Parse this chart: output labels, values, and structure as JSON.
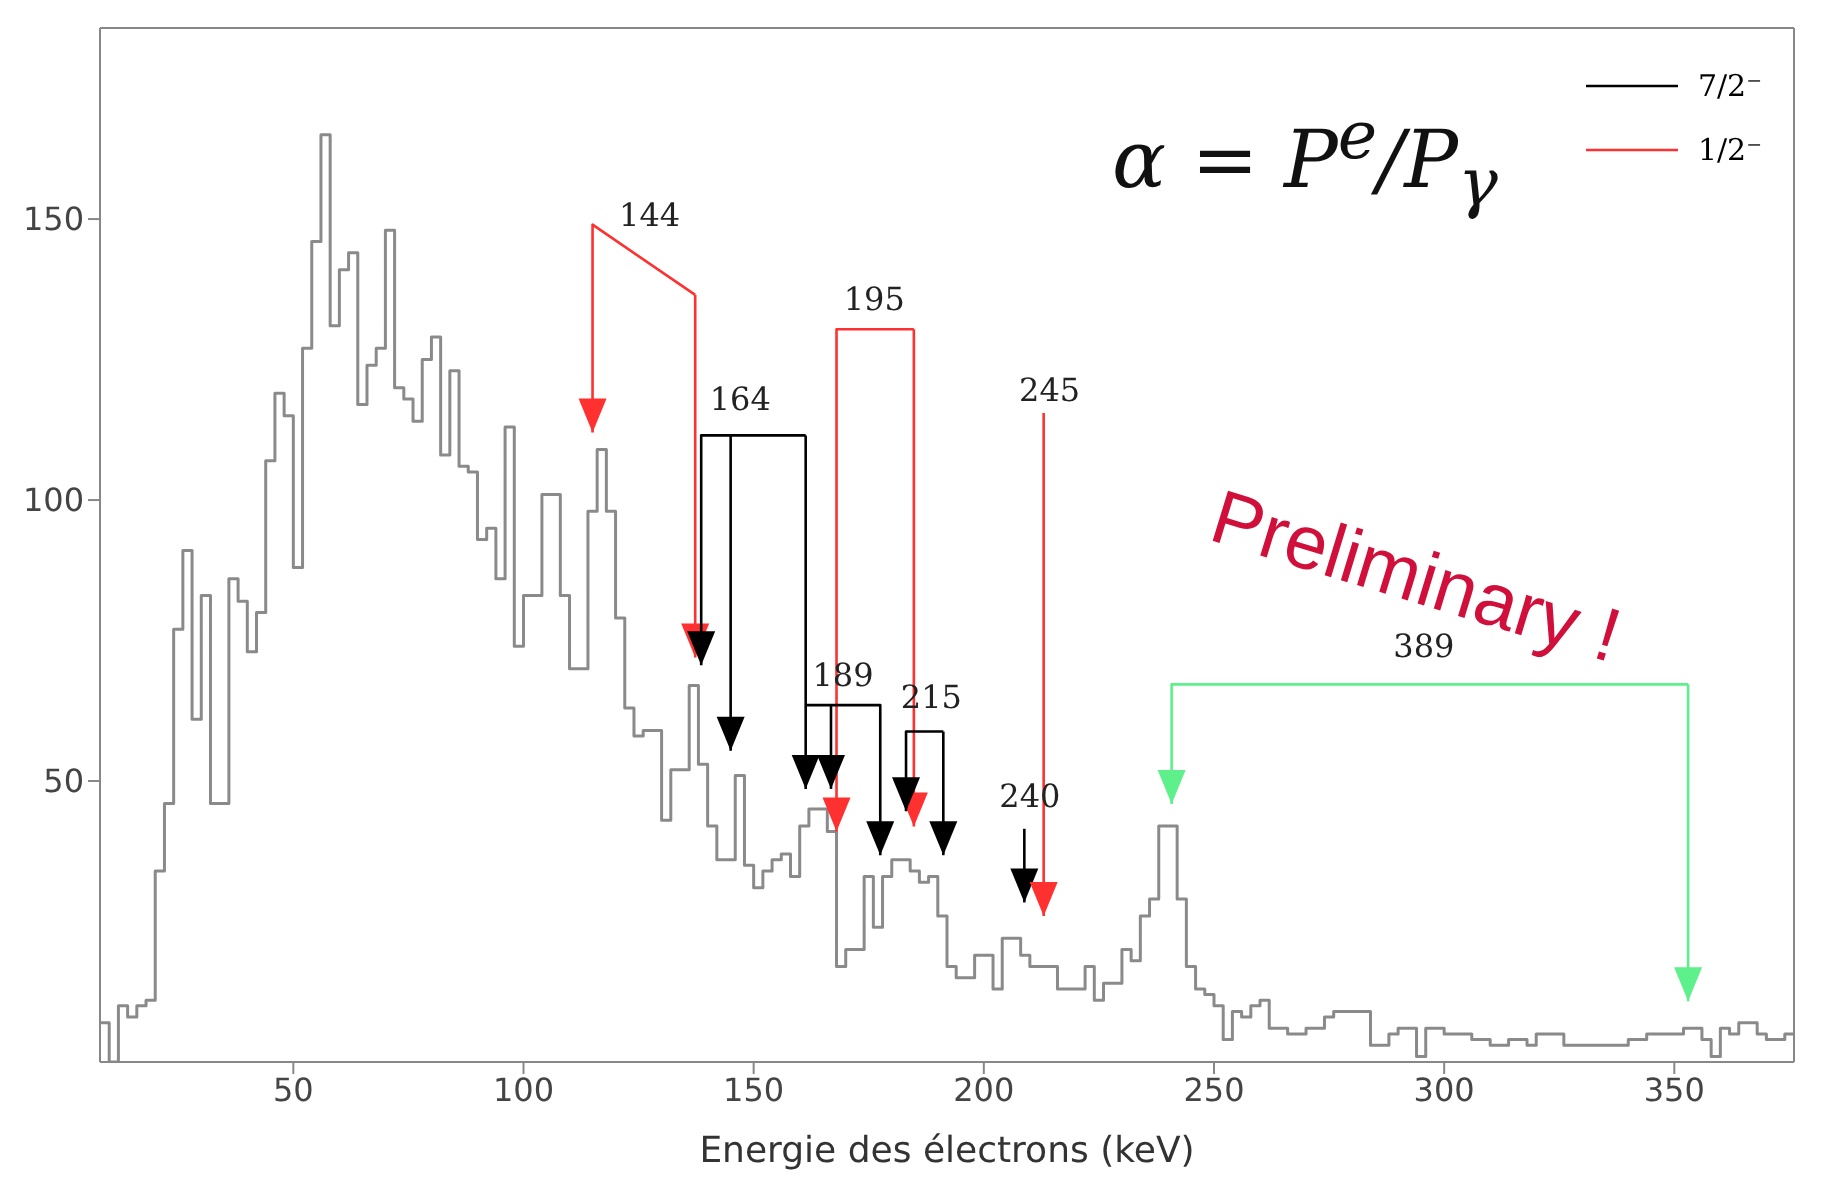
{
  "chart_data": {
    "type": "histogram",
    "xlabel": "Energie des électrons (keV)",
    "xlim": [
      8,
      376
    ],
    "xticks": [
      50,
      100,
      150,
      200,
      250,
      300,
      350
    ],
    "ylim": [
      0,
      184
    ],
    "yticks": [
      50,
      100,
      150
    ],
    "annotations": [
      "α = P$^{e}$/P$_{γ}$",
      "Preliminary !",
      "7/2⁻",
      "1/2⁻",
      "144",
      "164",
      {
        "text": "195",
        "x": 168,
        "y": 41
      },
      "189",
      "215",
      "240",
      "245",
      "389"
    ],
    "color": "#8a8a8a",
    "bins": [
      8,
      10,
      12,
      14,
      16,
      18,
      20,
      22,
      24,
      26,
      28,
      30,
      32,
      34,
      36,
      38,
      40,
      42,
      44,
      46,
      48,
      50,
      52,
      54,
      56,
      58,
      60,
      62,
      64,
      66,
      68,
      70,
      72,
      74,
      76,
      78,
      80,
      82,
      84,
      86,
      88,
      90,
      92,
      94,
      96,
      98,
      100,
      102,
      104,
      106,
      108,
      110,
      112,
      114,
      116,
      118,
      120,
      122,
      124,
      126,
      128,
      130,
      132,
      134,
      136,
      138,
      140,
      142,
      144,
      146,
      148,
      150,
      152,
      154,
      156,
      158,
      160,
      162,
      164,
      166,
      168,
      170,
      172,
      174,
      176,
      178,
      180,
      182,
      184,
      186,
      188,
      190,
      192,
      194,
      196,
      198,
      200,
      202,
      204,
      206,
      208,
      210,
      212,
      214,
      216,
      218,
      220,
      222,
      224,
      226,
      228,
      230,
      232,
      234,
      236,
      238,
      240,
      242,
      244,
      246,
      248,
      250,
      252,
      254,
      256,
      258,
      260,
      262,
      264,
      266,
      268,
      270,
      272,
      274,
      276,
      278,
      280,
      282,
      284,
      286,
      288,
      290,
      292,
      294,
      296,
      298,
      300,
      302,
      304,
      306,
      308,
      310,
      312,
      314,
      316,
      318,
      320,
      322,
      324,
      326,
      328,
      330,
      332,
      334,
      336,
      338,
      340,
      342,
      344,
      346,
      348,
      350,
      352,
      354,
      356,
      358,
      360,
      362,
      364,
      366,
      368,
      370,
      372,
      374,
      376
    ],
    "values": [
      7,
      0,
      10,
      8,
      10,
      11,
      34,
      46,
      77,
      91,
      61,
      83,
      46,
      46,
      86,
      82,
      73,
      80,
      107,
      119,
      115,
      88,
      127,
      146,
      165,
      131,
      141,
      144,
      117,
      124,
      127,
      148,
      120,
      118,
      114,
      125,
      129,
      108,
      123,
      106,
      105,
      93,
      95,
      86,
      113,
      74,
      83,
      83,
      101,
      101,
      83,
      70,
      70,
      98,
      109,
      98,
      79,
      63,
      58,
      59,
      59,
      43,
      52,
      52,
      67,
      53,
      42,
      36,
      36,
      51,
      35,
      31,
      34,
      36,
      37,
      33,
      42,
      45,
      45,
      41,
      17,
      20,
      20,
      33,
      24,
      33,
      36,
      36,
      34,
      32,
      33,
      26,
      17,
      15,
      15,
      19,
      19,
      13,
      22,
      22,
      19,
      17,
      17,
      17,
      13,
      13,
      13,
      17,
      11,
      14,
      14,
      20,
      18,
      26,
      29,
      42,
      42,
      29,
      17,
      13,
      12,
      10,
      4,
      9,
      8,
      10,
      11,
      6,
      6,
      5,
      5,
      6,
      6,
      8,
      9,
      9,
      9,
      9,
      3,
      3,
      5,
      6,
      6,
      1,
      6,
      6,
      5,
      5,
      5,
      4,
      4,
      3,
      3,
      4,
      4,
      3,
      5,
      5,
      5,
      3,
      3,
      3,
      3,
      3,
      3,
      3,
      4,
      4,
      5,
      5,
      5,
      5,
      6,
      6,
      4,
      1,
      6,
      5,
      7,
      7,
      5,
      4,
      4,
      5
    ]
  }
}
